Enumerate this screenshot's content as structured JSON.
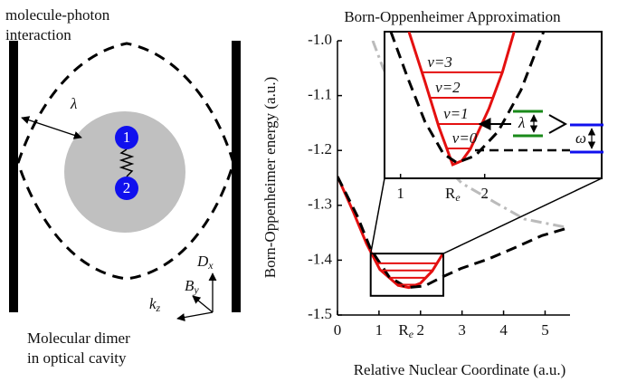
{
  "diagram": {
    "label_top": [
      "molecule-photon",
      "interaction"
    ],
    "lambda": "λ",
    "atoms": [
      "1",
      "2"
    ],
    "axis_labels": [
      {
        "text": "D",
        "sub": "x"
      },
      {
        "text": "B",
        "sub": "y"
      },
      {
        "text": "k",
        "sub": "z"
      }
    ],
    "caption": [
      "Molecular dimer",
      "in optical cavity"
    ]
  },
  "chart_data": [
    {
      "type": "line",
      "title": "Born-Oppenheimer Approximation",
      "xlabel": "Relative Nuclear Coordinate (a.u.)",
      "ylabel": "Born-Oppenheimer energy (a.u.)",
      "xlim": [
        0,
        5.6
      ],
      "ylim": [
        -1.5,
        -1.0
      ],
      "xticks": [
        0,
        1,
        2,
        3,
        4,
        5
      ],
      "yticks": [
        -1.5,
        -1.4,
        -1.3,
        -1.2,
        -1.1,
        {
          "value": -1.0,
          "label": "-1.0"
        }
      ],
      "re_marker": {
        "x": 1.65,
        "text": "R",
        "sub": "e"
      },
      "series": [
        {
          "color": "#bbbbbb",
          "style": "dashdot",
          "x": [
            0.85,
            1.1,
            1.6,
            2.2,
            3.0,
            3.8,
            4.5,
            5.5
          ],
          "values": [
            -1.0,
            -1.05,
            -1.13,
            -1.2,
            -1.26,
            -1.295,
            -1.325,
            -1.34
          ]
        },
        {
          "color": "#e41010",
          "style": "solid",
          "x": [
            0,
            0.37,
            0.7,
            1.02,
            1.46,
            1.72,
            2.0,
            2.28,
            2.54
          ],
          "values": [
            -1.2475,
            -1.31,
            -1.37,
            -1.417,
            -1.446,
            -1.45,
            -1.442,
            -1.42,
            -1.388
          ]
        },
        {
          "color": "#000000",
          "style": "dashed",
          "x": [
            0,
            0.48,
            0.8,
            1.24,
            1.67,
            2.1,
            2.54,
            2.98,
            3.63,
            4.28,
            4.93,
            5.48
          ],
          "values": [
            -1.2475,
            -1.32,
            -1.38,
            -1.43,
            -1.45,
            -1.447,
            -1.43,
            -1.415,
            -1.398,
            -1.377,
            -1.355,
            -1.343
          ]
        }
      ],
      "levels": {
        "color": "#e41010",
        "values": [
          -1.4447,
          -1.4322,
          -1.4188,
          -1.4058
        ]
      },
      "zoom_box": {
        "x": [
          0.8,
          2.55
        ],
        "y": [
          -1.465,
          -1.388
        ]
      }
    },
    {
      "type": "line",
      "xlim": [
        0.81,
        3.39
      ],
      "ylim": [
        -1.46,
        -1.385
      ],
      "xticks": [
        1,
        2
      ],
      "re_marker": {
        "x": 1.62,
        "text": "R",
        "sub": "e"
      },
      "series": [
        {
          "color": "#e41010",
          "style": "solid",
          "x": [
            1.1,
            1.29,
            1.455,
            1.62,
            1.73,
            1.83,
            2.05,
            2.21,
            2.35
          ],
          "values": [
            -1.385,
            -1.4105,
            -1.4336,
            -1.453,
            -1.451,
            -1.445,
            -1.4244,
            -1.4058,
            -1.385
          ]
        },
        {
          "color": "#000000",
          "style": "dashed",
          "x": [
            0.885,
            1.08,
            1.29,
            1.51,
            1.67,
            1.89,
            2.16,
            2.43,
            2.7
          ],
          "values": [
            -1.385,
            -1.408,
            -1.431,
            -1.4475,
            -1.452,
            -1.4484,
            -1.436,
            -1.415,
            -1.385
          ]
        }
      ],
      "levels": {
        "color": "#e41010",
        "values": [
          -1.4447,
          -1.4322,
          -1.4188,
          -1.4058
        ],
        "labels": [
          "ν=0",
          "ν=1",
          "ν=2",
          "ν=3"
        ]
      },
      "annotations": {
        "lambda": "λ",
        "omega": "ω"
      }
    }
  ]
}
